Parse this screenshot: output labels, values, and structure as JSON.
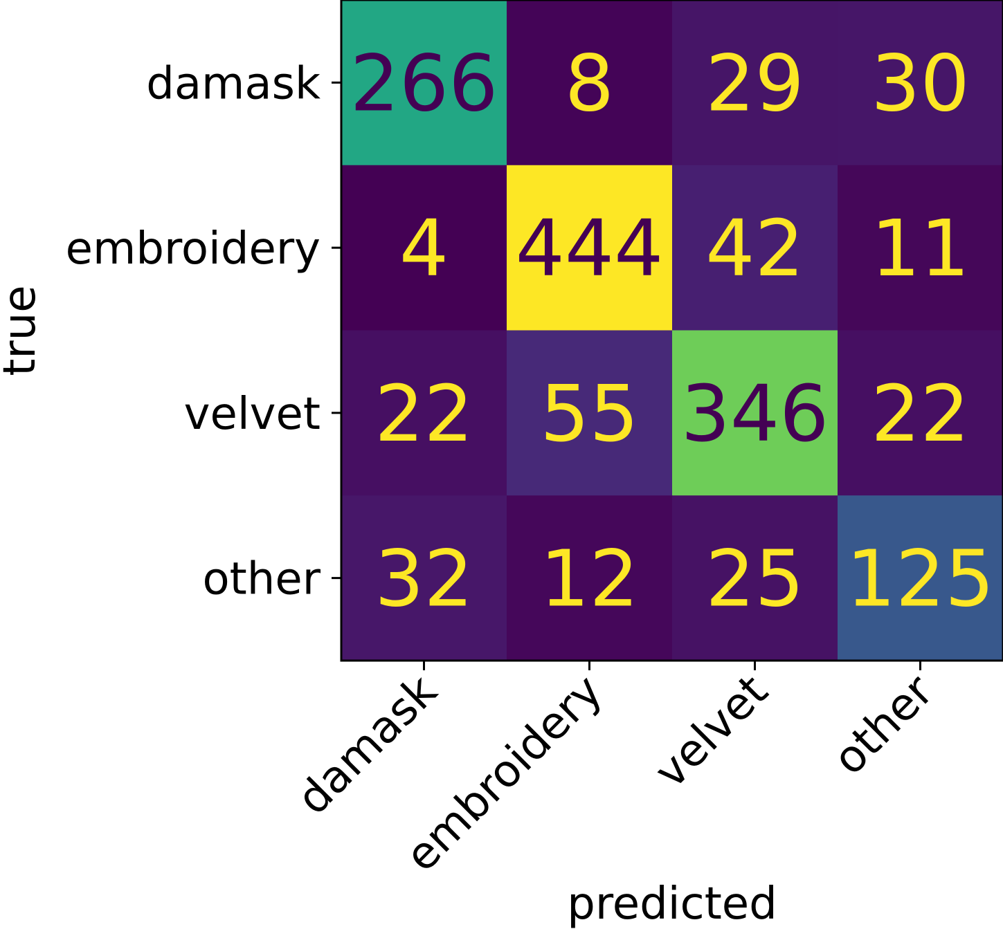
{
  "chart_data": {
    "type": "heatmap",
    "title": "",
    "xlabel": "predicted",
    "ylabel": "true",
    "x_categories": [
      "damask",
      "embroidery",
      "velvet",
      "other"
    ],
    "y_categories": [
      "damask",
      "embroidery",
      "velvet",
      "other"
    ],
    "values": [
      [
        266,
        8,
        29,
        30
      ],
      [
        4,
        444,
        42,
        11
      ],
      [
        22,
        55,
        346,
        22
      ],
      [
        32,
        12,
        25,
        125
      ]
    ],
    "colormap": "viridis",
    "value_range": [
      4,
      444
    ],
    "grid": false,
    "colorbar": false,
    "colors": {
      "label_on_dark": "#fde725",
      "label_on_light": "#440154"
    }
  }
}
